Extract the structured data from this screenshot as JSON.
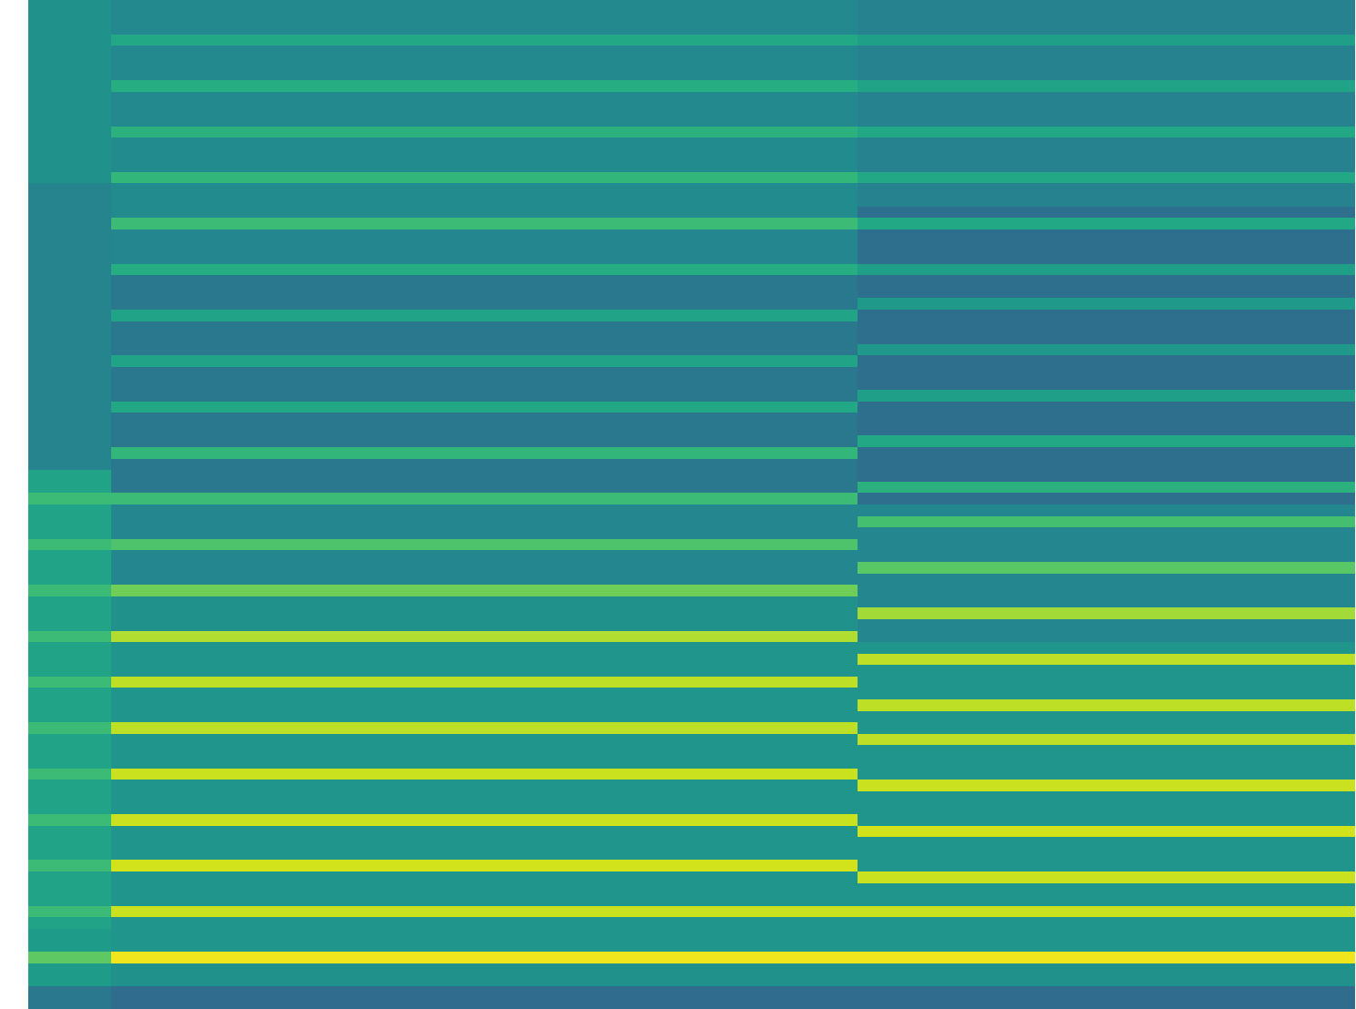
{
  "chart_data": {
    "type": "heatmap",
    "color": "viridis",
    "tick_labels": false,
    "zlim": [
      0,
      100
    ],
    "cells": [
      [
        50,
        47,
        47,
        47,
        47,
        47,
        47,
        47,
        47,
        47,
        44,
        44,
        44,
        44,
        44,
        44
      ],
      [
        50,
        47,
        47,
        47,
        47,
        47,
        47,
        47,
        47,
        47,
        44,
        44,
        44,
        44,
        44,
        44
      ],
      [
        50,
        47,
        47,
        47,
        47,
        47,
        47,
        47,
        47,
        47,
        44,
        44,
        44,
        44,
        44,
        44
      ],
      [
        50,
        60,
        60,
        60,
        60,
        60,
        60,
        60,
        60,
        60,
        56,
        56,
        56,
        56,
        56,
        56
      ],
      [
        50,
        47,
        47,
        47,
        47,
        47,
        47,
        47,
        47,
        47,
        44,
        44,
        44,
        44,
        44,
        44
      ],
      [
        50,
        47,
        47,
        47,
        47,
        47,
        47,
        47,
        47,
        47,
        44,
        44,
        44,
        44,
        44,
        44
      ],
      [
        50,
        47,
        47,
        47,
        47,
        47,
        47,
        47,
        47,
        47,
        44,
        44,
        44,
        44,
        44,
        44
      ],
      [
        50,
        62,
        62,
        62,
        62,
        62,
        62,
        62,
        62,
        62,
        58,
        58,
        58,
        58,
        58,
        58
      ],
      [
        50,
        47,
        47,
        47,
        47,
        47,
        47,
        47,
        47,
        47,
        44,
        44,
        44,
        44,
        44,
        44
      ],
      [
        50,
        47,
        47,
        47,
        47,
        47,
        47,
        47,
        47,
        47,
        44,
        44,
        44,
        44,
        44,
        44
      ],
      [
        50,
        47,
        47,
        47,
        47,
        47,
        47,
        47,
        47,
        47,
        44,
        44,
        44,
        44,
        44,
        44
      ],
      [
        50,
        64,
        64,
        64,
        64,
        64,
        64,
        64,
        64,
        64,
        60,
        60,
        60,
        60,
        60,
        60
      ],
      [
        50,
        48,
        48,
        48,
        48,
        48,
        48,
        48,
        48,
        48,
        44,
        44,
        44,
        44,
        44,
        44
      ],
      [
        50,
        48,
        48,
        48,
        48,
        48,
        48,
        48,
        48,
        48,
        44,
        44,
        44,
        44,
        44,
        44
      ],
      [
        50,
        48,
        48,
        48,
        48,
        48,
        48,
        48,
        48,
        48,
        44,
        44,
        44,
        44,
        44,
        44
      ],
      [
        50,
        66,
        66,
        66,
        66,
        66,
        66,
        66,
        66,
        66,
        60,
        60,
        60,
        60,
        60,
        60
      ],
      [
        45,
        48,
        48,
        48,
        48,
        48,
        48,
        48,
        48,
        48,
        44,
        44,
        44,
        44,
        44,
        44
      ],
      [
        45,
        48,
        48,
        48,
        48,
        48,
        48,
        48,
        48,
        48,
        44,
        44,
        44,
        44,
        44,
        44
      ],
      [
        45,
        48,
        48,
        48,
        48,
        48,
        48,
        48,
        48,
        48,
        36,
        36,
        36,
        36,
        36,
        36
      ],
      [
        45,
        68,
        68,
        68,
        68,
        68,
        68,
        68,
        68,
        68,
        60,
        60,
        60,
        60,
        60,
        60
      ],
      [
        45,
        46,
        46,
        46,
        46,
        46,
        46,
        46,
        46,
        46,
        36,
        36,
        36,
        36,
        36,
        36
      ],
      [
        45,
        46,
        46,
        46,
        46,
        46,
        46,
        46,
        46,
        46,
        36,
        36,
        36,
        36,
        36,
        36
      ],
      [
        45,
        46,
        46,
        46,
        46,
        46,
        46,
        46,
        46,
        46,
        36,
        36,
        36,
        36,
        36,
        36
      ],
      [
        45,
        62,
        62,
        62,
        62,
        62,
        62,
        62,
        62,
        62,
        56,
        56,
        56,
        56,
        56,
        56
      ],
      [
        45,
        40,
        40,
        40,
        40,
        40,
        40,
        40,
        40,
        40,
        36,
        36,
        36,
        36,
        36,
        36
      ],
      [
        45,
        40,
        40,
        40,
        40,
        40,
        40,
        40,
        40,
        40,
        36,
        36,
        36,
        36,
        36,
        36
      ],
      [
        45,
        40,
        40,
        40,
        40,
        40,
        40,
        40,
        40,
        40,
        54,
        54,
        54,
        54,
        54,
        54
      ],
      [
        45,
        58,
        58,
        58,
        58,
        58,
        58,
        58,
        58,
        58,
        36,
        36,
        36,
        36,
        36,
        36
      ],
      [
        45,
        40,
        40,
        40,
        40,
        40,
        40,
        40,
        40,
        40,
        36,
        36,
        36,
        36,
        36,
        36
      ],
      [
        45,
        40,
        40,
        40,
        40,
        40,
        40,
        40,
        40,
        40,
        36,
        36,
        36,
        36,
        36,
        36
      ],
      [
        45,
        40,
        40,
        40,
        40,
        40,
        40,
        40,
        40,
        40,
        54,
        54,
        54,
        54,
        54,
        54
      ],
      [
        45,
        58,
        58,
        58,
        58,
        58,
        58,
        58,
        58,
        58,
        36,
        36,
        36,
        36,
        36,
        36
      ],
      [
        45,
        40,
        40,
        40,
        40,
        40,
        40,
        40,
        40,
        40,
        36,
        36,
        36,
        36,
        36,
        36
      ],
      [
        45,
        40,
        40,
        40,
        40,
        40,
        40,
        40,
        40,
        40,
        36,
        36,
        36,
        36,
        36,
        36
      ],
      [
        45,
        40,
        40,
        40,
        40,
        40,
        40,
        40,
        40,
        40,
        56,
        56,
        56,
        56,
        56,
        56
      ],
      [
        45,
        60,
        60,
        60,
        60,
        60,
        60,
        60,
        60,
        60,
        36,
        36,
        36,
        36,
        36,
        36
      ],
      [
        45,
        40,
        40,
        40,
        40,
        40,
        40,
        40,
        40,
        40,
        36,
        36,
        36,
        36,
        36,
        36
      ],
      [
        45,
        40,
        40,
        40,
        40,
        40,
        40,
        40,
        40,
        40,
        36,
        36,
        36,
        36,
        36,
        36
      ],
      [
        45,
        40,
        40,
        40,
        40,
        40,
        40,
        40,
        40,
        40,
        60,
        60,
        60,
        60,
        60,
        60
      ],
      [
        45,
        66,
        66,
        66,
        66,
        66,
        66,
        66,
        66,
        66,
        36,
        36,
        36,
        36,
        36,
        36
      ],
      [
        45,
        40,
        40,
        40,
        40,
        40,
        40,
        40,
        40,
        40,
        36,
        36,
        36,
        36,
        36,
        36
      ],
      [
        58,
        40,
        40,
        40,
        40,
        40,
        40,
        40,
        40,
        40,
        36,
        36,
        36,
        36,
        36,
        36
      ],
      [
        58,
        40,
        40,
        40,
        40,
        40,
        40,
        40,
        40,
        40,
        64,
        64,
        64,
        64,
        64,
        64
      ],
      [
        68,
        68,
        68,
        68,
        68,
        68,
        68,
        68,
        68,
        68,
        36,
        36,
        36,
        36,
        36,
        36
      ],
      [
        58,
        46,
        46,
        46,
        46,
        46,
        46,
        46,
        46,
        46,
        46,
        46,
        46,
        46,
        46,
        46
      ],
      [
        58,
        46,
        46,
        46,
        46,
        46,
        46,
        46,
        46,
        46,
        70,
        70,
        70,
        70,
        70,
        70
      ],
      [
        58,
        46,
        46,
        46,
        46,
        46,
        46,
        46,
        46,
        46,
        46,
        46,
        46,
        46,
        46,
        46
      ],
      [
        68,
        72,
        72,
        72,
        72,
        72,
        72,
        72,
        72,
        72,
        46,
        46,
        46,
        46,
        46,
        46
      ],
      [
        58,
        46,
        46,
        46,
        46,
        46,
        46,
        46,
        46,
        46,
        46,
        46,
        46,
        46,
        46,
        46
      ],
      [
        58,
        46,
        46,
        46,
        46,
        46,
        46,
        46,
        46,
        46,
        74,
        74,
        74,
        74,
        74,
        74
      ],
      [
        58,
        46,
        46,
        46,
        46,
        46,
        46,
        46,
        46,
        46,
        46,
        46,
        46,
        46,
        46,
        46
      ],
      [
        68,
        78,
        78,
        78,
        78,
        78,
        78,
        78,
        78,
        78,
        46,
        46,
        46,
        46,
        46,
        46
      ],
      [
        58,
        50,
        50,
        50,
        50,
        50,
        50,
        50,
        50,
        50,
        46,
        46,
        46,
        46,
        46,
        46
      ],
      [
        58,
        50,
        50,
        50,
        50,
        50,
        50,
        50,
        50,
        50,
        86,
        86,
        86,
        86,
        86,
        86
      ],
      [
        58,
        50,
        50,
        50,
        50,
        50,
        50,
        50,
        50,
        50,
        46,
        46,
        46,
        46,
        46,
        46
      ],
      [
        68,
        88,
        88,
        88,
        88,
        88,
        88,
        88,
        88,
        88,
        46,
        46,
        46,
        46,
        46,
        46
      ],
      [
        58,
        52,
        52,
        52,
        52,
        52,
        52,
        52,
        52,
        52,
        52,
        52,
        52,
        52,
        52,
        52
      ],
      [
        58,
        52,
        52,
        52,
        52,
        52,
        52,
        52,
        52,
        52,
        90,
        90,
        90,
        90,
        90,
        90
      ],
      [
        58,
        52,
        52,
        52,
        52,
        52,
        52,
        52,
        52,
        52,
        52,
        52,
        52,
        52,
        52,
        52
      ],
      [
        68,
        90,
        90,
        90,
        90,
        90,
        90,
        90,
        90,
        90,
        52,
        52,
        52,
        52,
        52,
        52
      ],
      [
        58,
        52,
        52,
        52,
        52,
        52,
        52,
        52,
        52,
        52,
        52,
        52,
        52,
        52,
        52,
        52
      ],
      [
        58,
        52,
        52,
        52,
        52,
        52,
        52,
        52,
        52,
        52,
        90,
        90,
        90,
        90,
        90,
        90
      ],
      [
        58,
        52,
        52,
        52,
        52,
        52,
        52,
        52,
        52,
        52,
        52,
        52,
        52,
        52,
        52,
        52
      ],
      [
        68,
        90,
        90,
        90,
        90,
        90,
        90,
        90,
        90,
        90,
        52,
        52,
        52,
        52,
        52,
        52
      ],
      [
        58,
        52,
        52,
        52,
        52,
        52,
        52,
        52,
        52,
        52,
        90,
        90,
        90,
        90,
        90,
        90
      ],
      [
        58,
        52,
        52,
        52,
        52,
        52,
        52,
        52,
        52,
        52,
        52,
        52,
        52,
        52,
        52,
        52
      ],
      [
        58,
        52,
        52,
        52,
        52,
        52,
        52,
        52,
        52,
        52,
        52,
        52,
        52,
        52,
        52,
        52
      ],
      [
        68,
        92,
        92,
        92,
        92,
        92,
        92,
        92,
        92,
        92,
        52,
        52,
        52,
        52,
        52,
        52
      ],
      [
        58,
        52,
        52,
        52,
        52,
        52,
        52,
        52,
        52,
        52,
        92,
        92,
        92,
        92,
        92,
        92
      ],
      [
        58,
        52,
        52,
        52,
        52,
        52,
        52,
        52,
        52,
        52,
        52,
        52,
        52,
        52,
        52,
        52
      ],
      [
        58,
        52,
        52,
        52,
        52,
        52,
        52,
        52,
        52,
        52,
        52,
        52,
        52,
        52,
        52,
        52
      ],
      [
        68,
        92,
        92,
        92,
        92,
        92,
        92,
        92,
        92,
        92,
        52,
        52,
        52,
        52,
        52,
        52
      ],
      [
        58,
        52,
        52,
        52,
        52,
        52,
        52,
        52,
        52,
        52,
        93,
        93,
        93,
        93,
        93,
        93
      ],
      [
        58,
        52,
        52,
        52,
        52,
        52,
        52,
        52,
        52,
        52,
        52,
        52,
        52,
        52,
        52,
        52
      ],
      [
        58,
        52,
        52,
        52,
        52,
        52,
        52,
        52,
        52,
        52,
        52,
        52,
        52,
        52,
        52,
        52
      ],
      [
        68,
        93,
        93,
        93,
        93,
        93,
        93,
        93,
        93,
        93,
        52,
        52,
        52,
        52,
        52,
        52
      ],
      [
        58,
        52,
        52,
        52,
        52,
        52,
        52,
        52,
        52,
        52,
        92,
        92,
        92,
        92,
        92,
        92
      ],
      [
        58,
        52,
        52,
        52,
        52,
        52,
        52,
        52,
        52,
        52,
        52,
        52,
        52,
        52,
        52,
        52
      ],
      [
        58,
        52,
        52,
        52,
        52,
        52,
        52,
        52,
        52,
        52,
        52,
        52,
        52,
        52,
        52,
        52
      ],
      [
        68,
        92,
        92,
        92,
        92,
        92,
        92,
        92,
        92,
        92,
        92,
        92,
        92,
        92,
        92,
        92
      ],
      [
        58,
        52,
        52,
        52,
        52,
        52,
        52,
        52,
        52,
        52,
        52,
        52,
        52,
        52,
        52,
        52
      ],
      [
        55,
        52,
        52,
        52,
        52,
        52,
        52,
        52,
        52,
        52,
        52,
        52,
        52,
        52,
        52,
        52
      ],
      [
        55,
        52,
        52,
        52,
        52,
        52,
        52,
        52,
        52,
        52,
        52,
        52,
        52,
        52,
        52,
        52
      ],
      [
        75,
        98,
        98,
        98,
        98,
        98,
        98,
        98,
        98,
        98,
        98,
        98,
        98,
        98,
        98,
        98
      ],
      [
        55,
        50,
        50,
        50,
        50,
        50,
        50,
        50,
        50,
        50,
        50,
        50,
        50,
        50,
        50,
        50
      ],
      [
        55,
        50,
        50,
        50,
        50,
        50,
        50,
        50,
        50,
        50,
        50,
        50,
        50,
        50,
        50,
        50
      ],
      [
        40,
        35,
        35,
        35,
        35,
        35,
        35,
        35,
        35,
        35,
        35,
        35,
        35,
        35,
        35,
        35
      ],
      [
        40,
        35,
        35,
        35,
        35,
        35,
        35,
        35,
        35,
        35,
        35,
        35,
        35,
        35,
        35,
        35
      ]
    ]
  }
}
